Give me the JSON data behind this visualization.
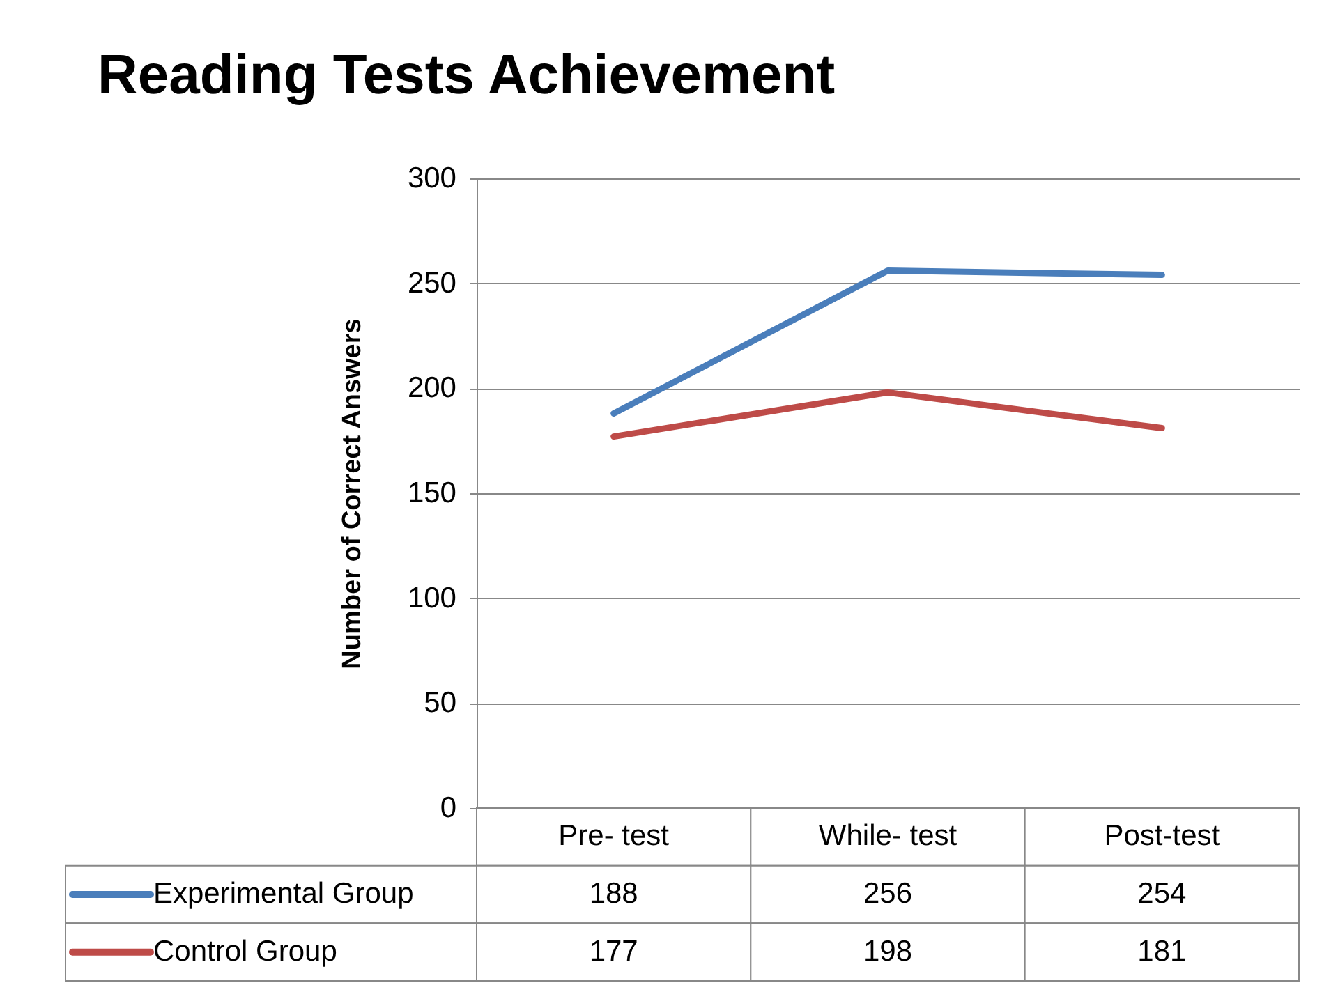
{
  "chart_data": {
    "type": "line",
    "title": "Reading Tests Achievement",
    "ylabel": "Number of Correct Answers",
    "categories": [
      "Pre- test",
      "While- test",
      "Post-test"
    ],
    "series": [
      {
        "name": "Experimental Group",
        "color": "#4a7ebb",
        "values": [
          188,
          256,
          254
        ]
      },
      {
        "name": "Control Group",
        "color": "#be4b48",
        "values": [
          177,
          198,
          181
        ]
      }
    ],
    "ylim": [
      0,
      300
    ],
    "yticks": [
      0,
      50,
      100,
      150,
      200,
      250,
      300
    ],
    "grid": "y",
    "legend": "bottom",
    "data_labels": true
  }
}
